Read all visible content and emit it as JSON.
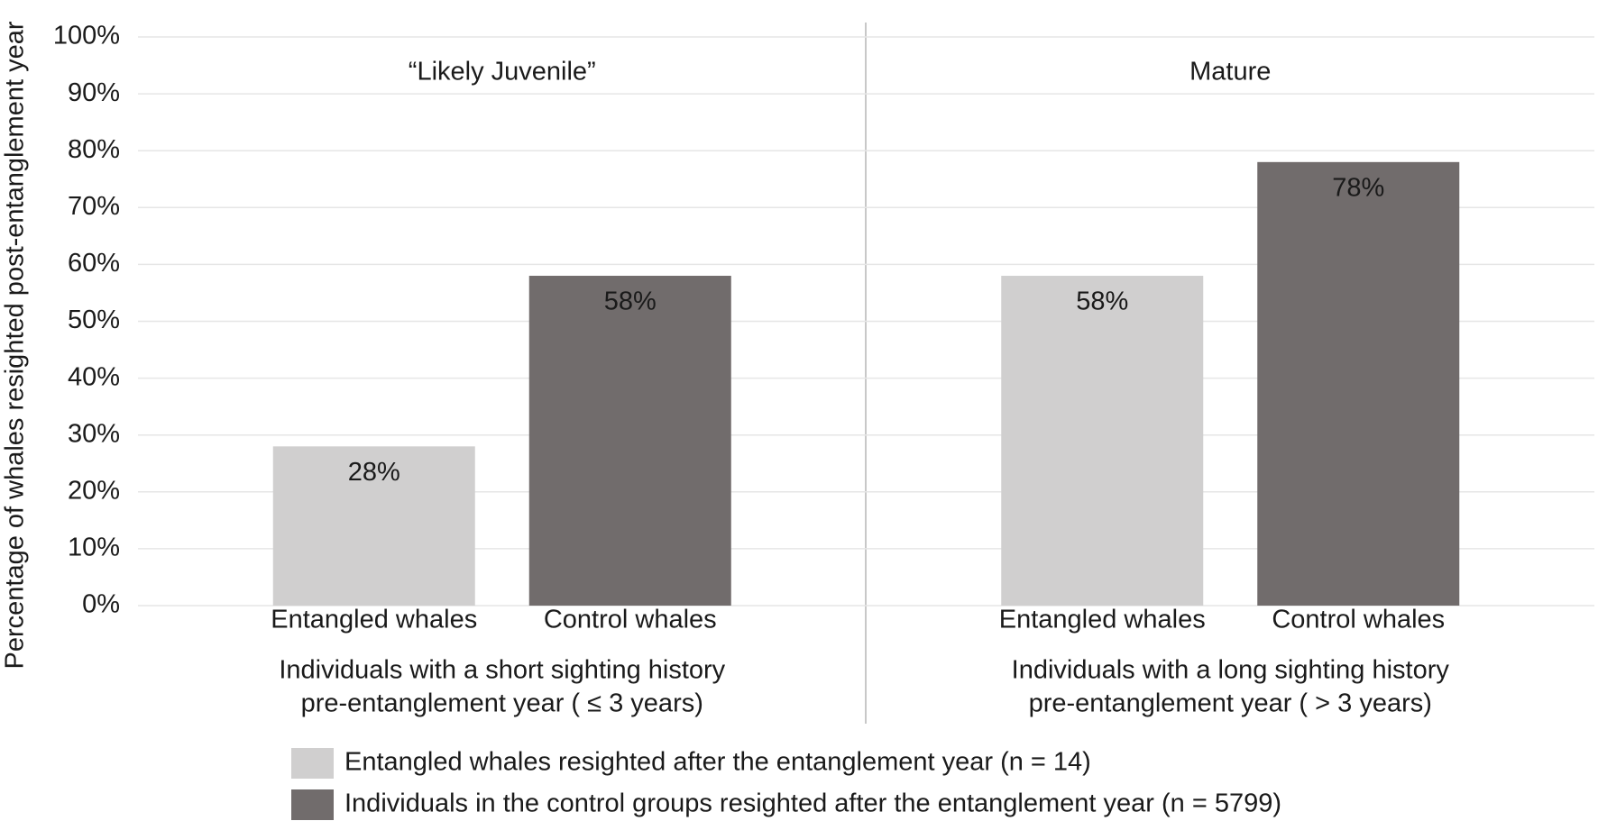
{
  "chart_data": {
    "type": "bar",
    "ylabel": "Percentage of whales resighted post-entanglement year",
    "ylim": [
      0,
      100
    ],
    "yticks": [
      {
        "value": 0,
        "label": "0%"
      },
      {
        "value": 10,
        "label": "10%"
      },
      {
        "value": 20,
        "label": "20%"
      },
      {
        "value": 30,
        "label": "30%"
      },
      {
        "value": 40,
        "label": "40%"
      },
      {
        "value": 50,
        "label": "50%"
      },
      {
        "value": 60,
        "label": "60%"
      },
      {
        "value": 70,
        "label": "70%"
      },
      {
        "value": 80,
        "label": "80%"
      },
      {
        "value": 90,
        "label": "90%"
      },
      {
        "value": 100,
        "label": "100%"
      }
    ],
    "grid": true,
    "series": [
      {
        "name": "Entangled whales resighted after the entanglement year (n = 14)",
        "color": "#d0cfcf"
      },
      {
        "name": "Individuals in the control groups resighted after the entanglement year (n = 5799)",
        "color": "#716c6c"
      }
    ],
    "groups": [
      {
        "title": "“Likely Juvenile”",
        "caption": [
          "Individuals with a short sighting history",
          "pre-entanglement year ( ≤ 3 years)"
        ],
        "categories": [
          "Entangled whales",
          "Control whales"
        ],
        "values": [
          28,
          58
        ],
        "value_labels": [
          "28%",
          "58%"
        ]
      },
      {
        "title": "Mature",
        "caption": [
          "Individuals with a long sighting history",
          "pre-entanglement year ( > 3 years)"
        ],
        "categories": [
          "Entangled whales",
          "Control whales"
        ],
        "values": [
          58,
          78
        ],
        "value_labels": [
          "58%",
          "78%"
        ]
      }
    ]
  }
}
